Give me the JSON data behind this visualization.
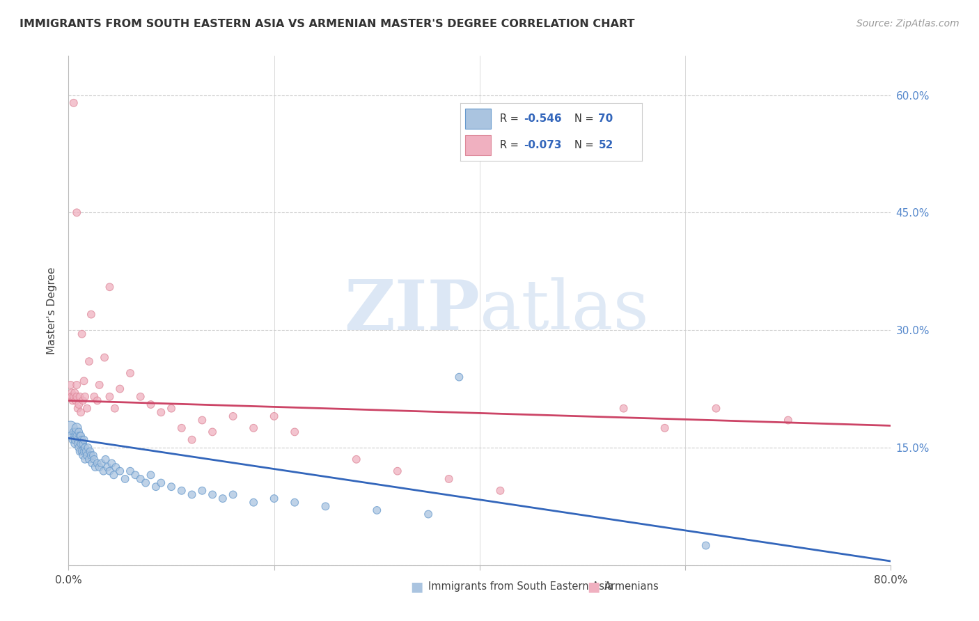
{
  "title": "IMMIGRANTS FROM SOUTH EASTERN ASIA VS ARMENIAN MASTER'S DEGREE CORRELATION CHART",
  "source": "Source: ZipAtlas.com",
  "xlabel_blue": "Immigrants from South Eastern Asia",
  "xlabel_pink": "Armenians",
  "ylabel": "Master's Degree",
  "watermark_zip": "ZIP",
  "watermark_atlas": "atlas",
  "blue_color": "#aac4e0",
  "blue_edge_color": "#6699cc",
  "blue_line_color": "#3366bb",
  "pink_color": "#f0b0c0",
  "pink_edge_color": "#dd8899",
  "pink_line_color": "#cc4466",
  "xmin": 0.0,
  "xmax": 0.8,
  "ymin": 0.0,
  "ymax": 0.65,
  "yticks": [
    0.0,
    0.15,
    0.3,
    0.45,
    0.6
  ],
  "ytick_labels_right": [
    "",
    "15.0%",
    "30.0%",
    "45.0%",
    "60.0%"
  ],
  "xticks": [
    0.0,
    0.2,
    0.4,
    0.6,
    0.8
  ],
  "xtick_labels": [
    "0.0%",
    "",
    "",
    "",
    "80.0%"
  ],
  "grid_color": "#cccccc",
  "background_color": "#ffffff",
  "blue_trendline_x": [
    0.0,
    0.8
  ],
  "blue_trendline_y": [
    0.162,
    0.005
  ],
  "pink_trendline_x": [
    0.0,
    0.8
  ],
  "pink_trendline_y": [
    0.21,
    0.178
  ],
  "blue_scatter_x": [
    0.002,
    0.003,
    0.004,
    0.005,
    0.006,
    0.006,
    0.007,
    0.007,
    0.008,
    0.008,
    0.009,
    0.009,
    0.01,
    0.01,
    0.011,
    0.011,
    0.012,
    0.012,
    0.013,
    0.013,
    0.014,
    0.014,
    0.015,
    0.015,
    0.016,
    0.016,
    0.017,
    0.018,
    0.019,
    0.02,
    0.021,
    0.022,
    0.023,
    0.024,
    0.025,
    0.026,
    0.028,
    0.03,
    0.032,
    0.034,
    0.036,
    0.038,
    0.04,
    0.042,
    0.044,
    0.046,
    0.05,
    0.055,
    0.06,
    0.065,
    0.07,
    0.075,
    0.08,
    0.085,
    0.09,
    0.1,
    0.11,
    0.12,
    0.13,
    0.14,
    0.15,
    0.16,
    0.18,
    0.2,
    0.22,
    0.25,
    0.3,
    0.35,
    0.38,
    0.62
  ],
  "blue_scatter_y": [
    0.175,
    0.165,
    0.16,
    0.17,
    0.155,
    0.165,
    0.17,
    0.16,
    0.175,
    0.165,
    0.16,
    0.155,
    0.17,
    0.15,
    0.165,
    0.145,
    0.155,
    0.165,
    0.16,
    0.145,
    0.155,
    0.14,
    0.145,
    0.16,
    0.15,
    0.135,
    0.145,
    0.14,
    0.15,
    0.135,
    0.145,
    0.14,
    0.13,
    0.14,
    0.135,
    0.125,
    0.13,
    0.125,
    0.13,
    0.12,
    0.135,
    0.125,
    0.12,
    0.13,
    0.115,
    0.125,
    0.12,
    0.11,
    0.12,
    0.115,
    0.11,
    0.105,
    0.115,
    0.1,
    0.105,
    0.1,
    0.095,
    0.09,
    0.095,
    0.09,
    0.085,
    0.09,
    0.08,
    0.085,
    0.08,
    0.075,
    0.07,
    0.065,
    0.24,
    0.025
  ],
  "blue_scatter_size": [
    200,
    80,
    60,
    60,
    60,
    60,
    60,
    80,
    100,
    60,
    60,
    60,
    60,
    60,
    60,
    60,
    60,
    60,
    60,
    60,
    60,
    60,
    60,
    60,
    60,
    60,
    60,
    60,
    60,
    60,
    60,
    60,
    60,
    60,
    60,
    60,
    60,
    60,
    60,
    60,
    60,
    60,
    60,
    60,
    60,
    60,
    60,
    60,
    60,
    60,
    60,
    60,
    60,
    60,
    60,
    60,
    60,
    60,
    60,
    60,
    60,
    60,
    60,
    60,
    60,
    60,
    60,
    60,
    60,
    60
  ],
  "pink_scatter_x": [
    0.001,
    0.002,
    0.003,
    0.003,
    0.004,
    0.005,
    0.005,
    0.006,
    0.007,
    0.008,
    0.008,
    0.009,
    0.01,
    0.011,
    0.012,
    0.013,
    0.014,
    0.015,
    0.016,
    0.018,
    0.02,
    0.022,
    0.025,
    0.028,
    0.03,
    0.035,
    0.04,
    0.045,
    0.05,
    0.06,
    0.07,
    0.08,
    0.09,
    0.1,
    0.11,
    0.12,
    0.13,
    0.14,
    0.16,
    0.18,
    0.2,
    0.22,
    0.28,
    0.32,
    0.37,
    0.42,
    0.54,
    0.58,
    0.63,
    0.7,
    0.008,
    0.04
  ],
  "pink_scatter_y": [
    0.215,
    0.23,
    0.22,
    0.215,
    0.21,
    0.59,
    0.215,
    0.22,
    0.21,
    0.23,
    0.215,
    0.2,
    0.205,
    0.215,
    0.195,
    0.295,
    0.21,
    0.235,
    0.215,
    0.2,
    0.26,
    0.32,
    0.215,
    0.21,
    0.23,
    0.265,
    0.215,
    0.2,
    0.225,
    0.245,
    0.215,
    0.205,
    0.195,
    0.2,
    0.175,
    0.16,
    0.185,
    0.17,
    0.19,
    0.175,
    0.19,
    0.17,
    0.135,
    0.12,
    0.11,
    0.095,
    0.2,
    0.175,
    0.2,
    0.185,
    0.45,
    0.355
  ],
  "pink_scatter_size": [
    60,
    60,
    60,
    60,
    60,
    60,
    60,
    60,
    60,
    60,
    60,
    60,
    60,
    60,
    60,
    60,
    60,
    60,
    60,
    60,
    60,
    60,
    60,
    60,
    60,
    60,
    60,
    60,
    60,
    60,
    60,
    60,
    60,
    60,
    60,
    60,
    60,
    60,
    60,
    60,
    60,
    60,
    60,
    60,
    60,
    60,
    60,
    60,
    60,
    60,
    60,
    60
  ]
}
